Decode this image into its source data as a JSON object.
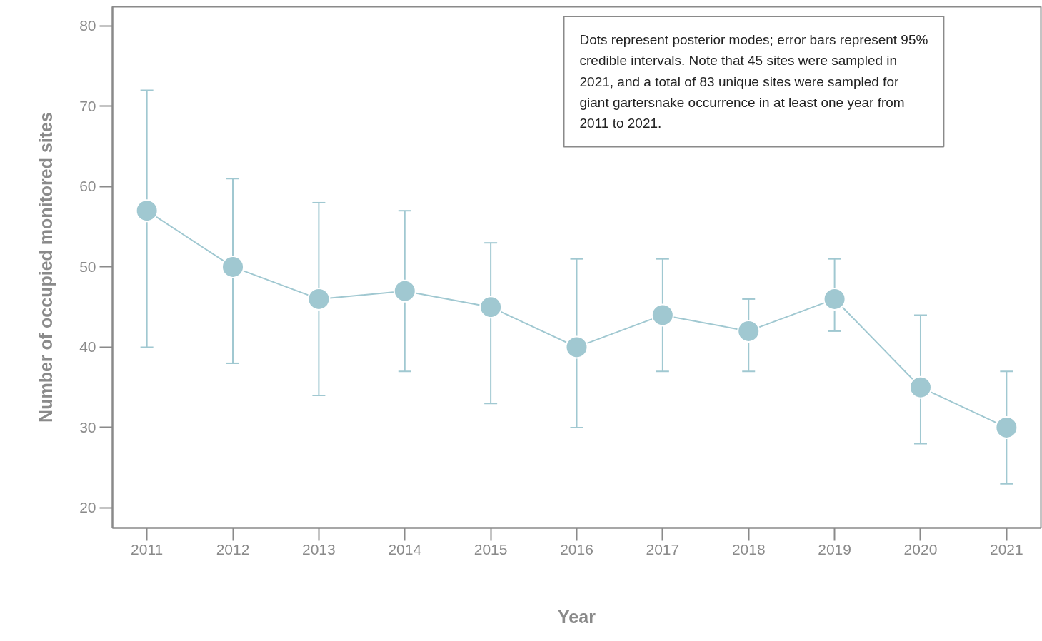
{
  "chart_data": {
    "type": "line",
    "xlabel": "Year",
    "ylabel": "Number of occupied monitored sites",
    "x": [
      2011,
      2012,
      2013,
      2014,
      2015,
      2016,
      2017,
      2018,
      2019,
      2020,
      2021
    ],
    "series": [
      {
        "color": "#a0c8d1",
        "values": [
          57,
          50,
          46,
          47,
          45,
          40,
          44,
          42,
          46,
          35,
          30
        ],
        "errors": [
          [
            40,
            72
          ],
          [
            38,
            61
          ],
          [
            34,
            58
          ],
          [
            37,
            57
          ],
          [
            33,
            53
          ],
          [
            30,
            51
          ],
          [
            37,
            51
          ],
          [
            37,
            46
          ],
          [
            42,
            51
          ],
          [
            28,
            44
          ],
          [
            23,
            37
          ]
        ]
      }
    ],
    "xlim": [
      2010.6,
      2021.4
    ],
    "xticks": [
      2011,
      2012,
      2013,
      2014,
      2015,
      2016,
      2017,
      2018,
      2019,
      2020,
      2021
    ],
    "ylim": [
      17.5,
      82.4
    ],
    "yticks": [
      20,
      30,
      40,
      50,
      60,
      70,
      80
    ],
    "grid": false,
    "marker": "circle",
    "line_style": "solid",
    "annotations": [
      "Dots represent posterior modes; error bars represent 95% credible intervals. Note that 45 sites were sampled in 2021, and a total of 83 unique sites were sampled for giant gartersnake occurrence in at least one year from 2011 to 2021."
    ]
  }
}
